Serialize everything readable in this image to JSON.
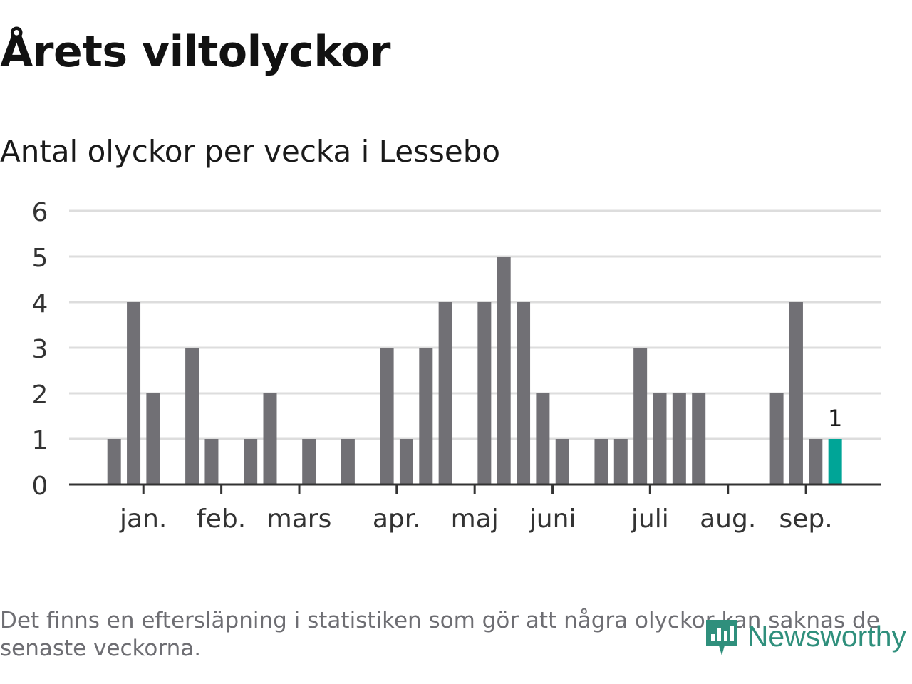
{
  "header": {
    "title": "Årets viltolyckor",
    "subtitle": "Antal olyckor per vecka i Lessebo"
  },
  "footer": {
    "note": "Det finns en eftersläpning i statistiken som gör att några olyckor kan saknas de senaste veckorna.",
    "brand": "Newsworthy"
  },
  "colors": {
    "bar": "#717075",
    "highlight": "#00a597",
    "grid": "#dddddd",
    "axis": "#333333",
    "brand": "#2f8f7c"
  },
  "chart_data": {
    "type": "bar",
    "title": "Årets viltolyckor",
    "subtitle": "Antal olyckor per vecka i Lessebo",
    "xlabel": "",
    "ylabel": "",
    "ylim": [
      0,
      6
    ],
    "yticks": [
      "0",
      "1",
      "2",
      "3",
      "4",
      "5",
      "6"
    ],
    "grid": true,
    "weeks": [
      1,
      2,
      3,
      4,
      5,
      6,
      7,
      8,
      9,
      10,
      11,
      12,
      13,
      14,
      15,
      16,
      17,
      18,
      19,
      20,
      21,
      22,
      23,
      24,
      25,
      26,
      27,
      28,
      29,
      30,
      31,
      32,
      33,
      34,
      35,
      36,
      37,
      38,
      39,
      40,
      41
    ],
    "values": [
      0,
      0,
      1,
      4,
      2,
      0,
      3,
      1,
      0,
      1,
      2,
      0,
      1,
      0,
      1,
      0,
      3,
      1,
      3,
      4,
      0,
      4,
      5,
      4,
      2,
      1,
      0,
      1,
      1,
      3,
      2,
      2,
      2,
      0,
      0,
      0,
      2,
      4,
      1,
      1,
      0
    ],
    "highlight_week": 40,
    "highlight_label": "1",
    "month_ticks": [
      {
        "label": "jan.",
        "week": 4
      },
      {
        "label": "feb.",
        "week": 8
      },
      {
        "label": "mars",
        "week": 12
      },
      {
        "label": "apr.",
        "week": 17
      },
      {
        "label": "maj",
        "week": 21
      },
      {
        "label": "juni",
        "week": 25
      },
      {
        "label": "juli",
        "week": 30
      },
      {
        "label": "aug.",
        "week": 34
      },
      {
        "label": "sep.",
        "week": 38
      }
    ]
  }
}
